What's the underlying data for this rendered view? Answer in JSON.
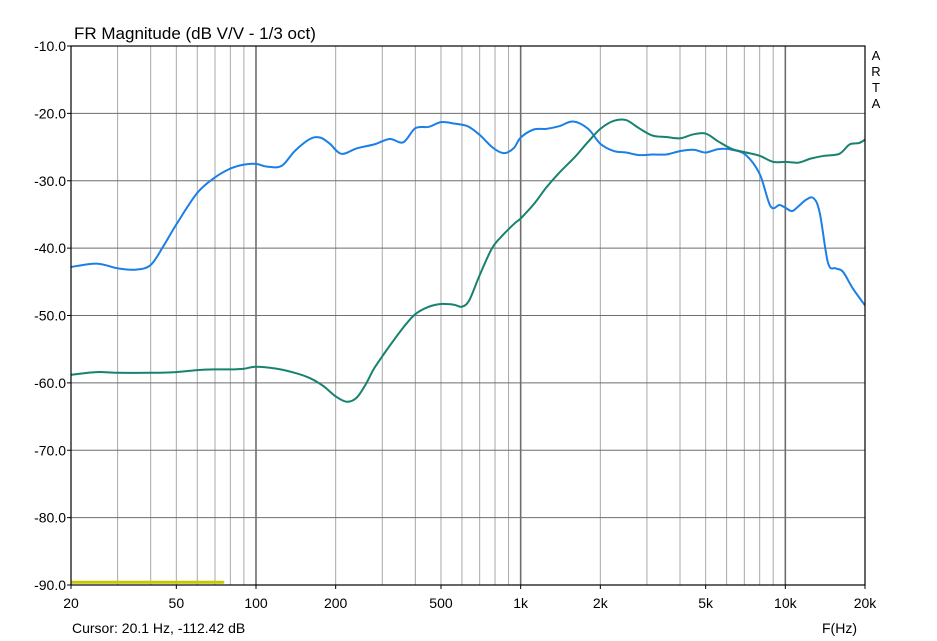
{
  "chart_data": {
    "type": "line",
    "title": "FR Magnitude (dB V/V - 1/3 oct)",
    "xlabel": "F(Hz)",
    "ylabel": "",
    "x_scale": "log",
    "xlim": [
      20,
      20000
    ],
    "ylim": [
      -90,
      -10
    ],
    "grid": true,
    "x_tick_labels": [
      {
        "value": 20,
        "label": "20"
      },
      {
        "value": 50,
        "label": "50"
      },
      {
        "value": 100,
        "label": "100"
      },
      {
        "value": 200,
        "label": "200"
      },
      {
        "value": 500,
        "label": "500"
      },
      {
        "value": 1000,
        "label": "1k"
      },
      {
        "value": 2000,
        "label": "2k"
      },
      {
        "value": 5000,
        "label": "5k"
      },
      {
        "value": 10000,
        "label": "10k"
      },
      {
        "value": 20000,
        "label": "20k"
      }
    ],
    "y_tick_labels": [
      {
        "value": -10,
        "label": "-10.0"
      },
      {
        "value": -20,
        "label": "-20.0"
      },
      {
        "value": -30,
        "label": "-30.0"
      },
      {
        "value": -40,
        "label": "-40.0"
      },
      {
        "value": -50,
        "label": "-50.0"
      },
      {
        "value": -60,
        "label": "-60.0"
      },
      {
        "value": -70,
        "label": "-70.0"
      },
      {
        "value": -80,
        "label": "-80.0"
      },
      {
        "value": -90,
        "label": "-90.0"
      }
    ],
    "series": [
      {
        "color": "#1a7fe6",
        "points": [
          [
            20,
            -42.8
          ],
          [
            25,
            -42.3
          ],
          [
            30,
            -43.0
          ],
          [
            35,
            -43.2
          ],
          [
            40,
            -42.5
          ],
          [
            45,
            -39.5
          ],
          [
            50,
            -36.5
          ],
          [
            60,
            -31.8
          ],
          [
            70,
            -29.5
          ],
          [
            80,
            -28.2
          ],
          [
            90,
            -27.6
          ],
          [
            100,
            -27.5
          ],
          [
            110,
            -27.9
          ],
          [
            125,
            -27.8
          ],
          [
            140,
            -25.6
          ],
          [
            160,
            -23.8
          ],
          [
            175,
            -23.6
          ],
          [
            190,
            -24.5
          ],
          [
            210,
            -26.0
          ],
          [
            240,
            -25.2
          ],
          [
            280,
            -24.6
          ],
          [
            320,
            -23.8
          ],
          [
            360,
            -24.3
          ],
          [
            400,
            -22.2
          ],
          [
            450,
            -22.0
          ],
          [
            500,
            -21.3
          ],
          [
            560,
            -21.5
          ],
          [
            630,
            -21.9
          ],
          [
            700,
            -23.2
          ],
          [
            780,
            -25.0
          ],
          [
            860,
            -25.9
          ],
          [
            940,
            -25.2
          ],
          [
            1000,
            -23.6
          ],
          [
            1120,
            -22.4
          ],
          [
            1250,
            -22.3
          ],
          [
            1400,
            -21.9
          ],
          [
            1580,
            -21.2
          ],
          [
            1800,
            -22.3
          ],
          [
            2000,
            -24.5
          ],
          [
            2250,
            -25.6
          ],
          [
            2500,
            -25.8
          ],
          [
            2800,
            -26.2
          ],
          [
            3150,
            -26.1
          ],
          [
            3550,
            -26.1
          ],
          [
            4000,
            -25.6
          ],
          [
            4500,
            -25.4
          ],
          [
            5000,
            -25.8
          ],
          [
            5600,
            -25.3
          ],
          [
            6300,
            -25.4
          ],
          [
            7100,
            -26.2
          ],
          [
            8000,
            -29.0
          ],
          [
            8800,
            -33.8
          ],
          [
            9500,
            -33.6
          ],
          [
            10000,
            -34.0
          ],
          [
            10600,
            -34.5
          ],
          [
            11200,
            -33.8
          ],
          [
            12000,
            -32.8
          ],
          [
            12800,
            -32.6
          ],
          [
            13500,
            -34.8
          ],
          [
            14500,
            -42.2
          ],
          [
            15500,
            -43.0
          ],
          [
            16500,
            -43.5
          ],
          [
            18000,
            -46.0
          ],
          [
            20000,
            -48.5
          ]
        ]
      },
      {
        "color": "#17826f",
        "points": [
          [
            20,
            -58.8
          ],
          [
            25,
            -58.4
          ],
          [
            30,
            -58.5
          ],
          [
            40,
            -58.5
          ],
          [
            50,
            -58.4
          ],
          [
            60,
            -58.1
          ],
          [
            70,
            -58.0
          ],
          [
            80,
            -58.0
          ],
          [
            90,
            -57.9
          ],
          [
            100,
            -57.6
          ],
          [
            120,
            -57.9
          ],
          [
            140,
            -58.5
          ],
          [
            160,
            -59.3
          ],
          [
            180,
            -60.5
          ],
          [
            200,
            -62.0
          ],
          [
            220,
            -62.8
          ],
          [
            240,
            -62.2
          ],
          [
            260,
            -60.2
          ],
          [
            280,
            -57.8
          ],
          [
            320,
            -54.5
          ],
          [
            360,
            -51.8
          ],
          [
            400,
            -49.8
          ],
          [
            450,
            -48.7
          ],
          [
            500,
            -48.3
          ],
          [
            560,
            -48.4
          ],
          [
            600,
            -48.7
          ],
          [
            640,
            -47.7
          ],
          [
            700,
            -44.0
          ],
          [
            780,
            -40.0
          ],
          [
            860,
            -38.0
          ],
          [
            950,
            -36.3
          ],
          [
            1000,
            -35.6
          ],
          [
            1120,
            -33.5
          ],
          [
            1250,
            -31.0
          ],
          [
            1400,
            -28.8
          ],
          [
            1600,
            -26.5
          ],
          [
            1800,
            -24.2
          ],
          [
            2000,
            -22.3
          ],
          [
            2250,
            -21.1
          ],
          [
            2500,
            -21.0
          ],
          [
            2800,
            -22.2
          ],
          [
            3150,
            -23.3
          ],
          [
            3550,
            -23.5
          ],
          [
            4000,
            -23.7
          ],
          [
            4500,
            -23.1
          ],
          [
            5000,
            -23.0
          ],
          [
            5600,
            -24.2
          ],
          [
            6300,
            -25.3
          ],
          [
            7100,
            -25.8
          ],
          [
            8000,
            -26.3
          ],
          [
            9000,
            -27.2
          ],
          [
            10000,
            -27.2
          ],
          [
            11200,
            -27.3
          ],
          [
            12500,
            -26.7
          ],
          [
            14000,
            -26.3
          ],
          [
            16000,
            -26.0
          ],
          [
            17500,
            -24.6
          ],
          [
            19000,
            -24.4
          ],
          [
            20000,
            -23.9
          ]
        ]
      },
      {
        "color": "#c8c800",
        "points": [
          [
            20,
            -89.6
          ],
          [
            75,
            -89.6
          ]
        ]
      }
    ]
  },
  "watermark": [
    "A",
    "R",
    "T",
    "A"
  ],
  "cursor_readout": "Cursor: 20.1 Hz, -112.42 dB",
  "colors": {
    "grid": "#a8a8a8",
    "grid_major": "#6e6e6e",
    "frame": "#000000"
  }
}
